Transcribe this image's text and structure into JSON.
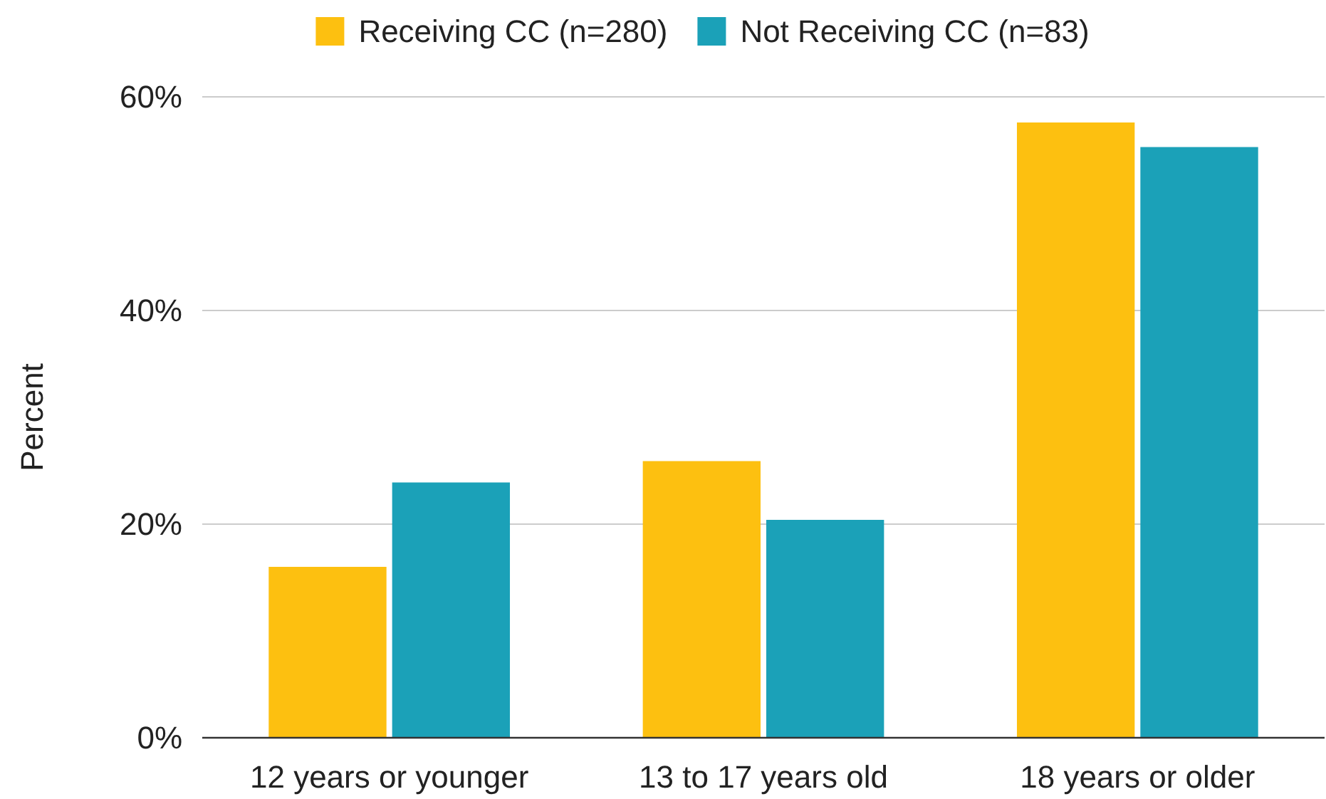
{
  "chart_data": {
    "type": "bar",
    "ylabel": "Percent",
    "categories": [
      "12 years or younger",
      "13 to 17 years old",
      "18 years or older"
    ],
    "series": [
      {
        "name": "Receiving CC (n=280)",
        "color": "#fdc010",
        "values": [
          16.0,
          25.9,
          57.6
        ]
      },
      {
        "name": "Not Receiving CC (n=83)",
        "color": "#1ba1b8",
        "values": [
          23.9,
          20.4,
          55.3
        ]
      }
    ],
    "ylim": [
      0,
      60
    ],
    "yticks": [
      {
        "value": 0,
        "label": "0%"
      },
      {
        "value": 20,
        "label": "20%"
      },
      {
        "value": 40,
        "label": "40%"
      },
      {
        "value": 60,
        "label": "60%"
      }
    ],
    "grid": "y",
    "legend": "top"
  }
}
